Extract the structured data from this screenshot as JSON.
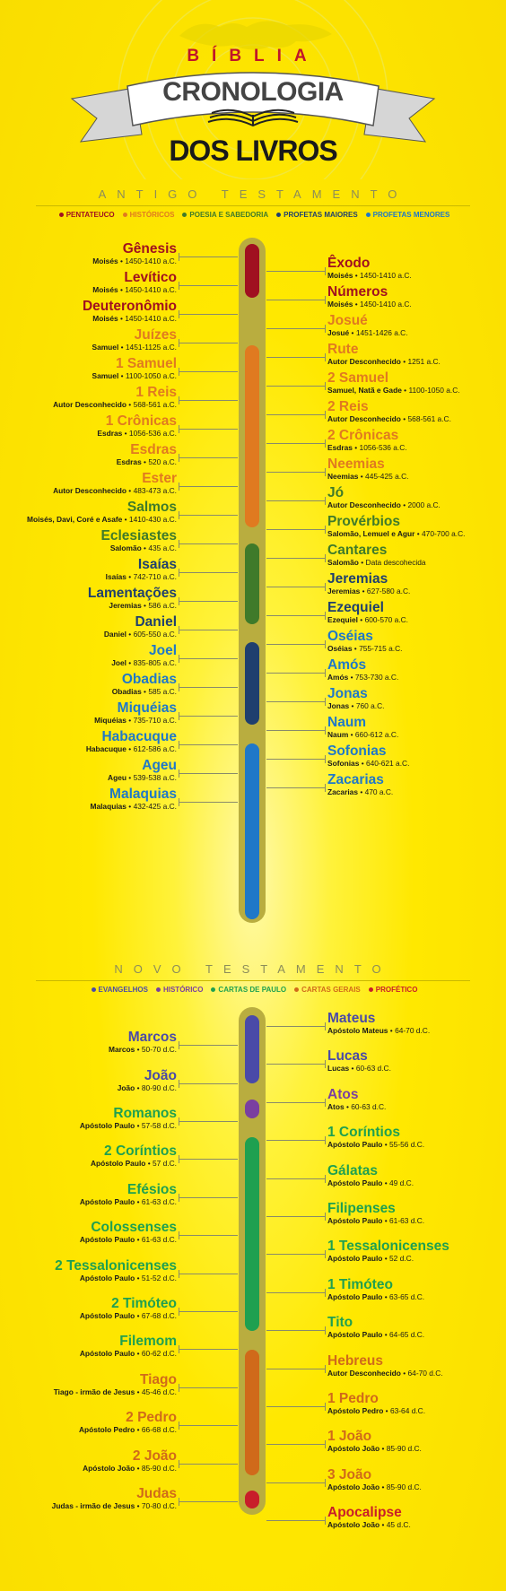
{
  "header": {
    "top": "BÍBLIA",
    "ribbon": "CRONOLOGIA",
    "bottom": "DOS LIVROS"
  },
  "ot": {
    "title": "ANTIGO TESTAMENTO",
    "legend": [
      {
        "label": "PENTATEUCO",
        "color": "#a01020"
      },
      {
        "label": "HISTÓRICOS",
        "color": "#e07a20"
      },
      {
        "label": "POESIA E SABEDORIA",
        "color": "#3f7a2a"
      },
      {
        "label": "PROFETAS MAIORES",
        "color": "#1f3f6e"
      },
      {
        "label": "PROFETAS MENORES",
        "color": "#1f78c8"
      }
    ],
    "entries": [
      {
        "name": "Gênesis",
        "author": "Moisés",
        "date": "1450-1410 a.C.",
        "side": "left",
        "cat": 0
      },
      {
        "name": "Êxodo",
        "author": "Moisés",
        "date": "1450-1410 a.C.",
        "side": "right",
        "cat": 0
      },
      {
        "name": "Levítico",
        "author": "Moisés",
        "date": "1450-1410 a.C.",
        "side": "left",
        "cat": 0
      },
      {
        "name": "Números",
        "author": "Moisés",
        "date": "1450-1410 a.C.",
        "side": "right",
        "cat": 0
      },
      {
        "name": "Deuteronômio",
        "author": "Moisés",
        "date": "1450-1410 a.C.",
        "side": "left",
        "cat": 0
      },
      {
        "name": "Josué",
        "author": "Josué",
        "date": "1451-1426 a.C.",
        "side": "right",
        "cat": 1
      },
      {
        "name": "Juízes",
        "author": "Samuel",
        "date": "1451-1125 a.C.",
        "side": "left",
        "cat": 1
      },
      {
        "name": "Rute",
        "author": "Autor Desconhecido",
        "date": "1251 a.C.",
        "side": "right",
        "cat": 1
      },
      {
        "name": "1 Samuel",
        "author": "Samuel",
        "date": "1100-1050 a.C.",
        "side": "left",
        "cat": 1
      },
      {
        "name": "2 Samuel",
        "author": "Samuel, Natã e Gade",
        "date": "1100-1050 a.C.",
        "side": "right",
        "cat": 1
      },
      {
        "name": "1 Reis",
        "author": "Autor Desconhecido",
        "date": "568-561 a.C.",
        "side": "left",
        "cat": 1
      },
      {
        "name": "2 Reis",
        "author": "Autor Desconhecido",
        "date": "568-561 a.C.",
        "side": "right",
        "cat": 1
      },
      {
        "name": "1 Crônicas",
        "author": "Esdras",
        "date": "1056-536 a.C.",
        "side": "left",
        "cat": 1
      },
      {
        "name": "2 Crônicas",
        "author": "Esdras",
        "date": "1056-536 a.C.",
        "side": "right",
        "cat": 1
      },
      {
        "name": "Esdras",
        "author": "Esdras",
        "date": "520 a.C.",
        "side": "left",
        "cat": 1
      },
      {
        "name": "Neemias",
        "author": "Neemias",
        "date": "445-425 a.C.",
        "side": "right",
        "cat": 1
      },
      {
        "name": "Ester",
        "author": "Autor Desconhecido",
        "date": "483-473 a.C.",
        "side": "left",
        "cat": 1
      },
      {
        "name": "Jó",
        "author": "Autor Desconhecido",
        "date": "2000 a.C.",
        "side": "right",
        "cat": 2
      },
      {
        "name": "Salmos",
        "author": "Moisés, Davi, Coré e Asafe",
        "date": "1410-430 a.C.",
        "side": "left",
        "cat": 2
      },
      {
        "name": "Provérbios",
        "author": "Salomão, Lemuel e Agur",
        "date": "470-700 a.C.",
        "side": "right",
        "cat": 2
      },
      {
        "name": "Eclesiastes",
        "author": "Salomão",
        "date": "435 a.C.",
        "side": "left",
        "cat": 2
      },
      {
        "name": "Cantares",
        "author": "Salomão",
        "date": "Data descohecida",
        "side": "right",
        "cat": 2
      },
      {
        "name": "Isaías",
        "author": "Isaías",
        "date": "742-710 a.C.",
        "side": "left",
        "cat": 3
      },
      {
        "name": "Jeremias",
        "author": "Jeremias",
        "date": "627-580 a.C.",
        "side": "right",
        "cat": 3
      },
      {
        "name": "Lamentações",
        "author": "Jeremias",
        "date": "586 a.C.",
        "side": "left",
        "cat": 3
      },
      {
        "name": "Ezequiel",
        "author": "Ezequiel",
        "date": "600-570 a.C.",
        "side": "right",
        "cat": 3
      },
      {
        "name": "Daniel",
        "author": "Daniel",
        "date": "605-550 a.C.",
        "side": "left",
        "cat": 3
      },
      {
        "name": "Oséias",
        "author": "Oséias",
        "date": "755-715 a.C.",
        "side": "right",
        "cat": 4
      },
      {
        "name": "Joel",
        "author": "Joel",
        "date": "835-805 a.C.",
        "side": "left",
        "cat": 4
      },
      {
        "name": "Amós",
        "author": "Amós",
        "date": "753-730 a.C.",
        "side": "right",
        "cat": 4
      },
      {
        "name": "Obadias",
        "author": "Obadias",
        "date": "585 a.C.",
        "side": "left",
        "cat": 4
      },
      {
        "name": "Jonas",
        "author": "Jonas",
        "date": "760 a.C.",
        "side": "right",
        "cat": 4
      },
      {
        "name": "Miquéias",
        "author": "Miquéias",
        "date": "735-710 a.C.",
        "side": "left",
        "cat": 4
      },
      {
        "name": "Naum",
        "author": "Naum",
        "date": "660-612 a.C.",
        "side": "right",
        "cat": 4
      },
      {
        "name": "Habacuque",
        "author": "Habacuque",
        "date": "612-586 a.C.",
        "side": "left",
        "cat": 4
      },
      {
        "name": "Sofonias",
        "author": "Sofonias",
        "date": "640-621 a.C.",
        "side": "right",
        "cat": 4
      },
      {
        "name": "Ageu",
        "author": "Ageu",
        "date": "539-538 a.C.",
        "side": "left",
        "cat": 4
      },
      {
        "name": "Zacarias",
        "author": "Zacarias",
        "date": "470 a.C.",
        "side": "right",
        "cat": 4
      },
      {
        "name": "Malaquias",
        "author": "Malaquias",
        "date": "432-425 a.C.",
        "side": "left",
        "cat": 4
      }
    ]
  },
  "nt": {
    "title": "NOVO TESTAMENTO",
    "legend": [
      {
        "label": "EVANGELHOS",
        "color": "#4a4aa8"
      },
      {
        "label": "HISTÓRICO",
        "color": "#7a3fa0"
      },
      {
        "label": "CARTAS DE PAULO",
        "color": "#1fa050"
      },
      {
        "label": "CARTAS GERAIS",
        "color": "#d06a1a"
      },
      {
        "label": "PROFÉTICO",
        "color": "#c81e2a"
      }
    ],
    "entries": [
      {
        "name": "Mateus",
        "author": "Apóstolo Mateus",
        "date": "64-70 d.C.",
        "side": "right",
        "cat": 0
      },
      {
        "name": "Marcos",
        "author": "Marcos",
        "date": "50-70 d.C.",
        "side": "left",
        "cat": 0
      },
      {
        "name": "Lucas",
        "author": "Lucas",
        "date": "60-63 d.C.",
        "side": "right",
        "cat": 0
      },
      {
        "name": "João",
        "author": "João",
        "date": "80-90 d.C.",
        "side": "left",
        "cat": 0
      },
      {
        "name": "Atos",
        "author": "Atos",
        "date": "60-63 d.C.",
        "side": "right",
        "cat": 1
      },
      {
        "name": "Romanos",
        "author": "Apóstolo Paulo",
        "date": "57-58 d.C.",
        "side": "left",
        "cat": 2
      },
      {
        "name": "1 Coríntios",
        "author": "Apóstolo Paulo",
        "date": "55-56 d.C.",
        "side": "right",
        "cat": 2
      },
      {
        "name": "2 Coríntios",
        "author": "Apóstolo Paulo",
        "date": "57 d.C.",
        "side": "left",
        "cat": 2
      },
      {
        "name": "Gálatas",
        "author": "Apóstolo Paulo",
        "date": "49 d.C.",
        "side": "right",
        "cat": 2
      },
      {
        "name": "Efésios",
        "author": "Apóstolo Paulo",
        "date": "61-63 d.C.",
        "side": "left",
        "cat": 2
      },
      {
        "name": "Filipenses",
        "author": "Apóstolo Paulo",
        "date": "61-63 d.C.",
        "side": "right",
        "cat": 2
      },
      {
        "name": "Colossenses",
        "author": "Apóstolo Paulo",
        "date": "61-63 d.C.",
        "side": "left",
        "cat": 2
      },
      {
        "name": "1 Tessalonicenses",
        "author": "Apóstolo Paulo",
        "date": "52 d.C.",
        "side": "right",
        "cat": 2
      },
      {
        "name": "2 Tessalonicenses",
        "author": "Apóstolo Paulo",
        "date": "51-52 d.C.",
        "side": "left",
        "cat": 2
      },
      {
        "name": "1 Timóteo",
        "author": "Apóstolo Paulo",
        "date": "63-65 d.C.",
        "side": "right",
        "cat": 2
      },
      {
        "name": "2 Timóteo",
        "author": "Apóstolo Paulo",
        "date": "67-68 d.C.",
        "side": "left",
        "cat": 2
      },
      {
        "name": "Tito",
        "author": "Apóstolo Paulo",
        "date": "64-65 d.C.",
        "side": "right",
        "cat": 2
      },
      {
        "name": "Filemom",
        "author": "Apóstolo Paulo",
        "date": "60-62 d.C.",
        "side": "left",
        "cat": 2
      },
      {
        "name": "Hebreus",
        "author": "Autor Desconhecido",
        "date": "64-70 d.C.",
        "side": "right",
        "cat": 3
      },
      {
        "name": "Tiago",
        "author": "Tiago - irmão de Jesus",
        "date": "45-46 d.C.",
        "side": "left",
        "cat": 3
      },
      {
        "name": "1 Pedro",
        "author": "Apóstolo Pedro",
        "date": "63-64 d.C.",
        "side": "right",
        "cat": 3
      },
      {
        "name": "2 Pedro",
        "author": "Apóstolo Pedro",
        "date": "66-68 d.C.",
        "side": "left",
        "cat": 3
      },
      {
        "name": "1 João",
        "author": "Apóstolo João",
        "date": "85-90 d.C.",
        "side": "right",
        "cat": 3
      },
      {
        "name": "2 João",
        "author": "Apóstolo João",
        "date": "85-90 d.C.",
        "side": "left",
        "cat": 3
      },
      {
        "name": "3 João",
        "author": "Apóstolo João",
        "date": "85-90 d.C.",
        "side": "right",
        "cat": 3
      },
      {
        "name": "Judas",
        "author": "Judas - irmão de Jesus",
        "date": "70-80 d.C.",
        "side": "left",
        "cat": 3
      },
      {
        "name": "Apocalipse",
        "author": "Apóstolo João",
        "date": "45 d.C.",
        "side": "right",
        "cat": 4
      }
    ]
  }
}
